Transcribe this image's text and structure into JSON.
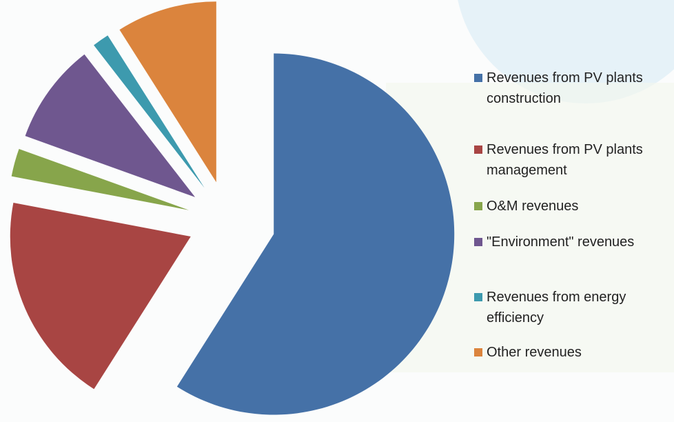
{
  "chart_data": {
    "type": "pie",
    "categories": [
      "Revenues from PV plants construction",
      "Revenues from PV plants management",
      "O&M revenues",
      "\"Environment\" revenues",
      "Revenues from energy efficiency",
      "Other revenues"
    ],
    "values": [
      59,
      19,
      2.5,
      9,
      1.5,
      9
    ],
    "colors": [
      "#4571a7",
      "#a84543",
      "#87a54b",
      "#6f578f",
      "#3d9aae",
      "#db843d"
    ],
    "legend": "right"
  }
}
